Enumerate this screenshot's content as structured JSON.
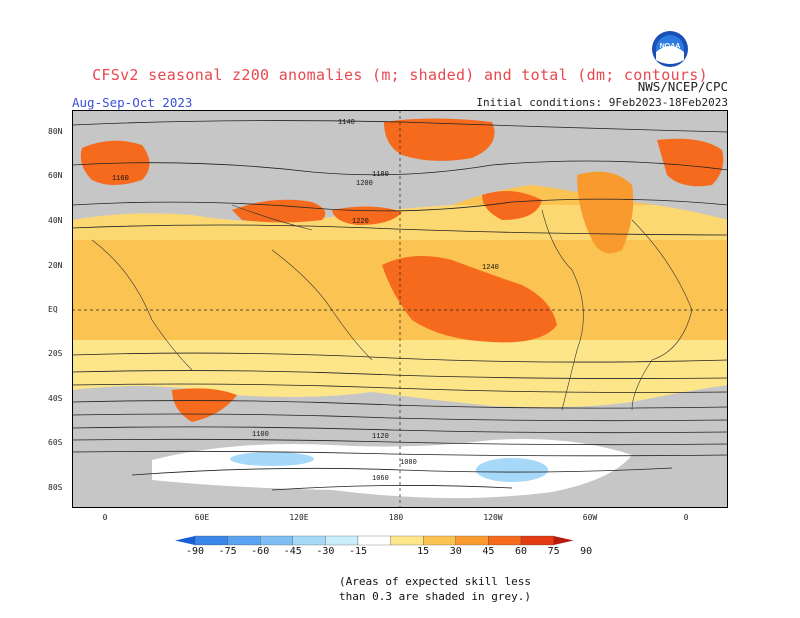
{
  "header": {
    "title": "CFSv2 seasonal z200 anomalies (m; shaded) and total (dm; contours)",
    "season": "Aug-Sep-Oct 2023",
    "source": "NWS/NCEP/CPC",
    "initial": "Initial conditions: 9Feb2023-18Feb2023",
    "logo_text": "NOAA"
  },
  "axes": {
    "lat_labels": [
      "80N",
      "60N",
      "40N",
      "20N",
      "EQ",
      "20S",
      "40S",
      "60S",
      "80S"
    ],
    "lon_labels": [
      "0",
      "60E",
      "120E",
      "180",
      "120W",
      "60W",
      "0"
    ]
  },
  "contour_labels": [
    "1140",
    "1160",
    "1180",
    "1200",
    "1220",
    "1240",
    "1120",
    "1100",
    "1080",
    "1060"
  ],
  "colorbar": {
    "labels": [
      "-90",
      "-75",
      "-60",
      "-45",
      "-30",
      "-15",
      "15",
      "30",
      "45",
      "60",
      "75",
      "90"
    ],
    "colors": [
      "#1a5fd6",
      "#3a86e8",
      "#5aa3f0",
      "#7fbff5",
      "#a6d9f7",
      "#c9eefb",
      "#ffffff",
      "#fde68a",
      "#fbc351",
      "#f99a2f",
      "#f56a1c",
      "#e33a12",
      "#b81a0c"
    ]
  },
  "note": {
    "line1": "(Areas of expected skill less",
    "line2": "than 0.3 are shaded in grey.)"
  }
}
